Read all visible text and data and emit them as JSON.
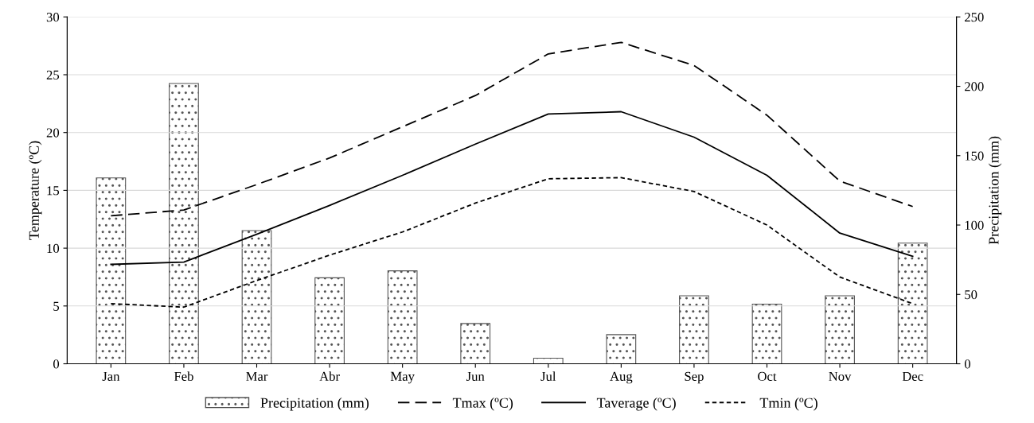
{
  "chart_data": {
    "type": "line",
    "categories": [
      "Jan",
      "Feb",
      "Mar",
      "Abr",
      "May",
      "Jun",
      "Jul",
      "Aug",
      "Sep",
      "Oct",
      "Nov",
      "Dec"
    ],
    "series": [
      {
        "name": "Precipitation (mm)",
        "type": "bar",
        "axis": "y2",
        "color": "#555555",
        "values": [
          134,
          202,
          96,
          62,
          67,
          29,
          4,
          21,
          49,
          43,
          49,
          87
        ]
      },
      {
        "name": "Tmax (ºC)",
        "color": "#000000",
        "line_style": "dashed",
        "values": [
          12.8,
          13.3,
          15.5,
          17.8,
          20.5,
          23.2,
          26.8,
          27.8,
          25.8,
          21.5,
          15.8,
          13.6
        ]
      },
      {
        "name": "Taverage (ºC)",
        "color": "#000000",
        "line_style": "solid",
        "values": [
          8.6,
          8.8,
          11.2,
          13.7,
          16.3,
          19.0,
          21.6,
          21.8,
          19.6,
          16.3,
          11.3,
          9.3
        ]
      },
      {
        "name": "Tmin (ºC)",
        "color": "#000000",
        "line_style": "dotted",
        "values": [
          5.2,
          4.9,
          7.2,
          9.4,
          11.4,
          13.9,
          16.0,
          16.1,
          14.9,
          12.0,
          7.5,
          5.2
        ]
      }
    ],
    "ylabel": "Temperature (ºC)",
    "y2label": "Precipitation (mm)",
    "ylim": [
      0,
      30
    ],
    "yticks": [
      0,
      5,
      10,
      15,
      20,
      25,
      30
    ],
    "y2lim": [
      0,
      250
    ],
    "y2ticks": [
      0,
      50,
      100,
      150,
      200,
      250
    ],
    "grid": "y",
    "legend": "bottom"
  }
}
